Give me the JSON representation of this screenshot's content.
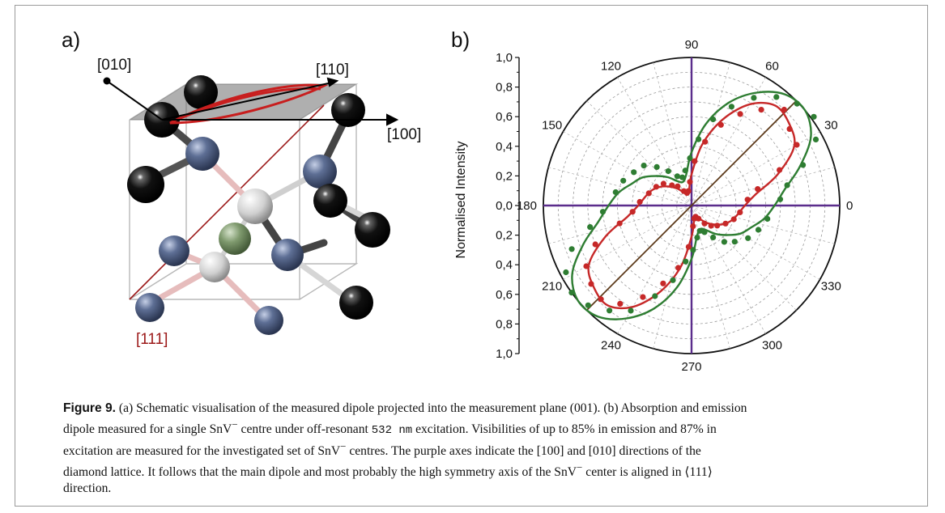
{
  "panel_a": {
    "label": "a)",
    "directions": {
      "d010": "[010]",
      "d110": "[110]",
      "d100": "[100]",
      "d111": "[111]"
    },
    "colors": {
      "carbon": "#0b0b0b",
      "nitrogen_blue": "#5e6f95",
      "vacancy": "#d9d9d9",
      "tin": "#7f9a6e",
      "dipole_red": "#c81e1e"
    }
  },
  "panel_b": {
    "label": "b)"
  },
  "chart_data": {
    "type": "polar",
    "ylabel": "Normalised Intensity",
    "angle_tick_labels": [
      "0",
      "30",
      "60",
      "90",
      "120",
      "150",
      "180",
      "210",
      "240",
      "270",
      "300",
      "330"
    ],
    "radial_tick_labels": [
      "0,0",
      "0,2",
      "0,4",
      "0,6",
      "0,8",
      "1,0"
    ],
    "rlim": [
      0,
      1.0
    ],
    "grid": true,
    "series": [
      {
        "color": "#2e7d32",
        "kind": "excitation-fit",
        "theta_deg": [
          0,
          10,
          20,
          30,
          40,
          50,
          60,
          70,
          80,
          90,
          100,
          110,
          120,
          130,
          140,
          150,
          160,
          170,
          180,
          190,
          200,
          210,
          220,
          230,
          240,
          250,
          260,
          270,
          280,
          290,
          300,
          310,
          320,
          330,
          340,
          350
        ],
        "r": [
          0.56,
          0.64,
          0.78,
          0.93,
          1.0,
          0.98,
          0.88,
          0.74,
          0.56,
          0.36,
          0.21,
          0.17,
          0.19,
          0.25,
          0.31,
          0.38,
          0.43,
          0.5,
          0.56,
          0.64,
          0.78,
          0.93,
          1.0,
          0.98,
          0.88,
          0.74,
          0.56,
          0.36,
          0.21,
          0.17,
          0.19,
          0.25,
          0.31,
          0.38,
          0.43,
          0.5
        ]
      },
      {
        "color": "#c62828",
        "kind": "emission-fit",
        "theta_deg": [
          0,
          10,
          20,
          30,
          40,
          50,
          60,
          70,
          80,
          90,
          100,
          110,
          120,
          130,
          140,
          150,
          160,
          170,
          180,
          190,
          200,
          210,
          220,
          230,
          240,
          250,
          260,
          270,
          280,
          290,
          300,
          310,
          320,
          330,
          340,
          350
        ],
        "r": [
          0.36,
          0.44,
          0.62,
          0.8,
          0.86,
          0.88,
          0.79,
          0.62,
          0.42,
          0.21,
          0.1,
          0.08,
          0.1,
          0.15,
          0.2,
          0.25,
          0.29,
          0.32,
          0.36,
          0.44,
          0.62,
          0.8,
          0.86,
          0.88,
          0.79,
          0.62,
          0.42,
          0.21,
          0.1,
          0.08,
          0.1,
          0.15,
          0.2,
          0.25,
          0.29,
          0.32
        ]
      },
      {
        "color": "#2e7d32",
        "kind": "excitation-points",
        "theta_deg": [
          4,
          12,
          20,
          28,
          36,
          44,
          52,
          60,
          68,
          76,
          84,
          92,
          100,
          108,
          116,
          124,
          132,
          140,
          150,
          160,
          170,
          184,
          192,
          200,
          208,
          216,
          224,
          232,
          240,
          248,
          256,
          264,
          272,
          280,
          288,
          296,
          304,
          312,
          320,
          330,
          340,
          350
        ],
        "r": [
          0.6,
          0.66,
          0.8,
          0.95,
          1.02,
          0.99,
          0.93,
          0.84,
          0.72,
          0.6,
          0.45,
          0.32,
          0.24,
          0.2,
          0.22,
          0.28,
          0.35,
          0.42,
          0.45,
          0.49,
          0.52,
          0.6,
          0.7,
          0.86,
          0.96,
          1.0,
          0.97,
          0.9,
          0.82,
          0.66,
          0.52,
          0.38,
          0.3,
          0.22,
          0.18,
          0.2,
          0.26,
          0.33,
          0.38,
          0.44,
          0.48,
          0.52
        ]
      },
      {
        "color": "#c62828",
        "kind": "emission-points",
        "theta_deg": [
          6,
          14,
          22,
          30,
          38,
          46,
          54,
          62,
          70,
          78,
          86,
          94,
          102,
          110,
          118,
          126,
          134,
          142,
          152,
          164,
          176,
          186,
          194,
          202,
          210,
          218,
          226,
          234,
          242,
          250,
          258,
          266,
          274,
          282,
          290,
          298,
          306,
          314,
          322,
          332,
          342,
          352
        ],
        "r": [
          0.38,
          0.46,
          0.64,
          0.82,
          0.84,
          0.9,
          0.8,
          0.7,
          0.58,
          0.44,
          0.3,
          0.16,
          0.1,
          0.09,
          0.11,
          0.16,
          0.19,
          0.24,
          0.27,
          0.3,
          0.35,
          0.4,
          0.5,
          0.7,
          0.82,
          0.86,
          0.88,
          0.82,
          0.7,
          0.56,
          0.43,
          0.28,
          0.14,
          0.09,
          0.08,
          0.1,
          0.15,
          0.19,
          0.22,
          0.26,
          0.3,
          0.33
        ]
      }
    ],
    "axis_lines": [
      {
        "angle_deg": 0,
        "color": "#5b2d8c",
        "meaning": "[100]"
      },
      {
        "angle_deg": 90,
        "color": "#5b2d8c",
        "meaning": "[010]"
      },
      {
        "angle_deg": 45,
        "color": "#5d3a1a",
        "meaning": "[111] projection"
      }
    ]
  },
  "caption": {
    "fig_label": "Figure 9.",
    "line1_after": " (a) Schematic visualisation of the measured dipole projected into the measurement plane (001). (b) Absorption and emission",
    "line2_pre": "dipole measured for a single SnV",
    "line2_mid": " centre under off-resonant ",
    "wavelength": "532 nm",
    "line2_post": " excitation. Visibilities of up to 85% in emission and 87% in",
    "line3_pre": "excitation are measured for the investigated set of SnV",
    "line3_post": " centres. The purple axes indicate the [100] and [010] directions of the",
    "line4": "diamond lattice. It follows that the main dipole and most probably the high symmetry axis of the SnV",
    "line4_post": " center is aligned in ⟨111⟩",
    "line5": "direction.",
    "superscript_minus": "−"
  }
}
